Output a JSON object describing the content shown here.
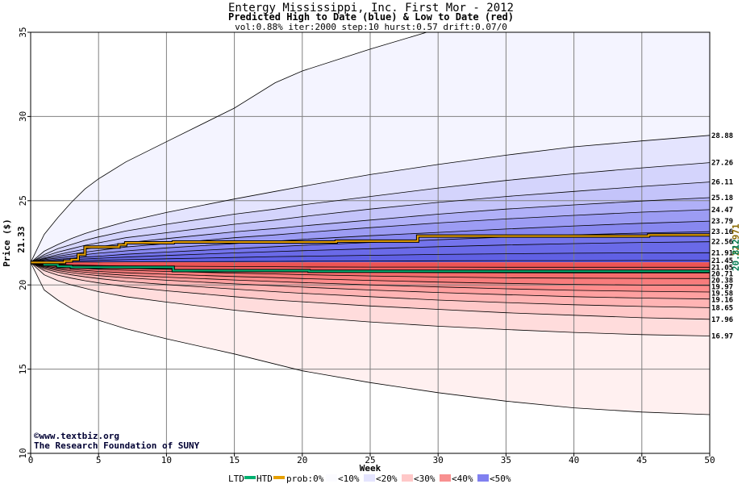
{
  "chart_data": {
    "type": "area",
    "title": "Entergy Mississippi, Inc. First Mor - 2012",
    "subtitle": "Predicted High to Date (blue) &  Low to Date (red)",
    "params": "vol:0.88% iter:2000 step:10 hurst:0.57 drift:0.07/0",
    "xlabel": "Week",
    "ylabel": "Price ($)",
    "xlim": [
      0,
      50
    ],
    "ylim": [
      10,
      35
    ],
    "x_ticks": [
      0,
      5,
      10,
      15,
      20,
      25,
      30,
      35,
      40,
      45,
      50
    ],
    "y_ticks": [
      10,
      15,
      20,
      25,
      30,
      35
    ],
    "grid": true,
    "start_price": 21.33,
    "start_label": "21.33",
    "x": [
      0,
      1,
      2,
      3,
      4,
      5,
      7,
      10,
      15,
      18,
      20,
      25,
      30,
      35,
      40,
      45,
      50
    ],
    "upper_series": [
      {
        "name": "outer",
        "values": [
          21.33,
          23.0,
          24.0,
          24.9,
          25.7,
          26.3,
          27.3,
          28.5,
          30.5,
          32.0,
          32.7,
          34.0,
          35.2,
          36.3,
          37.3,
          38.3,
          39.2
        ],
        "end_label": ""
      },
      {
        "name": "28.88",
        "values": [
          21.33,
          22.0,
          22.4,
          22.75,
          23.05,
          23.3,
          23.75,
          24.3,
          25.1,
          25.55,
          25.85,
          26.55,
          27.15,
          27.7,
          28.2,
          28.55,
          28.88
        ],
        "end_label": "28.88"
      },
      {
        "name": "27.26",
        "values": [
          21.33,
          21.8,
          22.15,
          22.4,
          22.65,
          22.85,
          23.2,
          23.6,
          24.2,
          24.5,
          24.75,
          25.25,
          25.75,
          26.2,
          26.6,
          26.95,
          27.26
        ],
        "end_label": "27.26"
      },
      {
        "name": "26.11",
        "values": [
          21.33,
          21.7,
          21.95,
          22.15,
          22.35,
          22.5,
          22.8,
          23.1,
          23.6,
          23.85,
          24.05,
          24.5,
          24.9,
          25.25,
          25.55,
          25.85,
          26.11
        ],
        "end_label": "26.11"
      },
      {
        "name": "25.18",
        "values": [
          21.33,
          21.6,
          21.8,
          21.97,
          22.12,
          22.25,
          22.5,
          22.75,
          23.15,
          23.35,
          23.5,
          23.85,
          24.2,
          24.5,
          24.75,
          24.98,
          25.18
        ],
        "end_label": "25.18"
      },
      {
        "name": "24.47",
        "values": [
          21.33,
          21.55,
          21.7,
          21.83,
          21.95,
          22.05,
          22.25,
          22.45,
          22.8,
          22.97,
          23.1,
          23.4,
          23.68,
          23.92,
          24.13,
          24.32,
          24.47
        ],
        "end_label": "24.47"
      },
      {
        "name": "23.79",
        "values": [
          21.33,
          21.5,
          21.6,
          21.7,
          21.8,
          21.88,
          22.02,
          22.2,
          22.45,
          22.6,
          22.7,
          22.92,
          23.12,
          23.32,
          23.5,
          23.66,
          23.79
        ],
        "end_label": "23.79"
      },
      {
        "name": "23.16",
        "values": [
          21.33,
          21.45,
          21.52,
          21.58,
          21.65,
          21.7,
          21.82,
          21.95,
          22.15,
          22.27,
          22.35,
          22.52,
          22.68,
          22.84,
          22.97,
          23.08,
          23.16
        ],
        "end_label": "23.16"
      },
      {
        "name": "22.56",
        "values": [
          21.33,
          21.4,
          21.45,
          21.5,
          21.54,
          21.58,
          21.65,
          21.75,
          21.9,
          21.98,
          22.03,
          22.15,
          22.27,
          22.37,
          22.45,
          22.52,
          22.56
        ],
        "end_label": "22.56"
      },
      {
        "name": "21.91",
        "values": [
          21.33,
          21.37,
          21.4,
          21.42,
          21.44,
          21.46,
          21.5,
          21.55,
          21.63,
          21.68,
          21.7,
          21.76,
          21.81,
          21.85,
          21.88,
          21.9,
          21.91
        ],
        "end_label": "21.91"
      },
      {
        "name": "21.45",
        "values": [
          21.33,
          21.34,
          21.35,
          21.35,
          21.36,
          21.36,
          21.37,
          21.38,
          21.39,
          21.4,
          21.41,
          21.42,
          21.43,
          21.44,
          21.44,
          21.45,
          21.45
        ],
        "end_label": "21.45"
      }
    ],
    "lower_series": [
      {
        "name": "outer",
        "values": [
          21.33,
          19.7,
          19.1,
          18.6,
          18.2,
          17.9,
          17.4,
          16.8,
          15.9,
          15.3,
          14.9,
          14.2,
          13.6,
          13.1,
          12.7,
          12.45,
          12.3
        ],
        "end_label": ""
      },
      {
        "name": "16.97",
        "values": [
          21.33,
          20.6,
          20.25,
          20.0,
          19.8,
          19.6,
          19.3,
          18.98,
          18.5,
          18.25,
          18.1,
          17.8,
          17.55,
          17.35,
          17.18,
          17.05,
          16.97
        ],
        "end_label": "16.97"
      },
      {
        "name": "17.96",
        "values": [
          21.33,
          20.85,
          20.58,
          20.4,
          20.25,
          20.12,
          19.9,
          19.65,
          19.3,
          19.1,
          19.0,
          18.75,
          18.55,
          18.35,
          18.2,
          18.05,
          17.96
        ],
        "end_label": "17.96"
      },
      {
        "name": "18.65",
        "values": [
          21.33,
          20.95,
          20.75,
          20.6,
          20.48,
          20.38,
          20.2,
          20.02,
          19.75,
          19.6,
          19.5,
          19.3,
          19.1,
          18.95,
          18.82,
          18.72,
          18.65
        ],
        "end_label": "18.65"
      },
      {
        "name": "19.16",
        "values": [
          21.33,
          21.02,
          20.85,
          20.73,
          20.63,
          20.55,
          20.42,
          20.28,
          20.06,
          19.95,
          19.87,
          19.7,
          19.55,
          19.42,
          19.3,
          19.22,
          19.16
        ],
        "end_label": "19.16"
      },
      {
        "name": "19.58",
        "values": [
          21.33,
          21.07,
          20.93,
          20.83,
          20.75,
          20.68,
          20.57,
          20.46,
          20.29,
          20.2,
          20.14,
          20.0,
          19.88,
          19.77,
          19.68,
          19.62,
          19.58
        ],
        "end_label": "19.58"
      },
      {
        "name": "19.97",
        "values": [
          21.33,
          21.12,
          21.0,
          20.92,
          20.86,
          20.8,
          20.72,
          20.63,
          20.5,
          20.43,
          20.38,
          20.27,
          20.17,
          20.09,
          20.03,
          19.99,
          19.97
        ],
        "end_label": "19.97"
      },
      {
        "name": "20.38",
        "values": [
          21.33,
          21.17,
          21.08,
          21.02,
          20.97,
          20.93,
          20.87,
          20.8,
          20.7,
          20.65,
          20.61,
          20.53,
          20.47,
          20.42,
          20.4,
          20.39,
          20.38
        ],
        "end_label": "20.38"
      },
      {
        "name": "20.71",
        "values": [
          21.33,
          21.2,
          21.13,
          21.09,
          21.05,
          21.02,
          20.98,
          20.93,
          20.86,
          20.82,
          20.8,
          20.76,
          20.73,
          20.72,
          20.71,
          20.71,
          20.71
        ],
        "end_label": "20.71"
      },
      {
        "name": "21.05",
        "values": [
          21.33,
          21.26,
          21.22,
          21.19,
          21.17,
          21.15,
          21.13,
          21.11,
          21.09,
          21.08,
          21.07,
          21.06,
          21.06,
          21.05,
          21.05,
          21.05,
          21.05
        ],
        "end_label": "21.05"
      }
    ],
    "htd_line": {
      "x": [
        0,
        1,
        2,
        2.5,
        3,
        3.5,
        4,
        6,
        6.5,
        7,
        10,
        10.5,
        22,
        22.5,
        28,
        28.5,
        45,
        45.5,
        50
      ],
      "values": [
        21.33,
        21.33,
        21.33,
        21.42,
        21.5,
        21.8,
        22.25,
        22.25,
        22.38,
        22.5,
        22.5,
        22.55,
        22.55,
        22.6,
        22.6,
        22.9,
        22.9,
        22.97,
        22.971
      ],
      "end_label": "22.971",
      "color": "#e6a000"
    },
    "ltd_line": {
      "x": [
        0,
        1,
        2,
        3,
        10,
        10.5,
        20,
        20.5,
        50
      ],
      "values": [
        21.33,
        21.2,
        21.1,
        21.05,
        21.05,
        20.85,
        20.85,
        20.812,
        20.812
      ],
      "end_label": "20.812",
      "color": "#00b070"
    },
    "legend": {
      "ltd": "LTD",
      "htd": "HTD",
      "prob": "prob:0%",
      "bins": [
        "<10%",
        "<20%",
        "<30%",
        "<40%",
        "<50%"
      ]
    },
    "colors": {
      "upper_fill": [
        "#f4f4ff",
        "#e4e4fe",
        "#d4d4fc",
        "#c4c4fa",
        "#b0b0f8",
        "#9c9cf4",
        "#8888f0",
        "#7474ec",
        "#6a6ae8",
        "#6060e4",
        "#5656e0"
      ],
      "lower_fill": [
        "#fff0f0",
        "#ffdcdc",
        "#ffc8c8",
        "#ffb4b4",
        "#ffa0a0",
        "#ff8c8c",
        "#f87c7c",
        "#f46c6c",
        "#f06060",
        "#ec5454"
      ],
      "line": "#000000",
      "grid": "#808080",
      "credit": "#000033"
    },
    "credit": {
      "line1": "©www.textbiz.org",
      "line2": "The Research Foundation of SUNY"
    }
  }
}
